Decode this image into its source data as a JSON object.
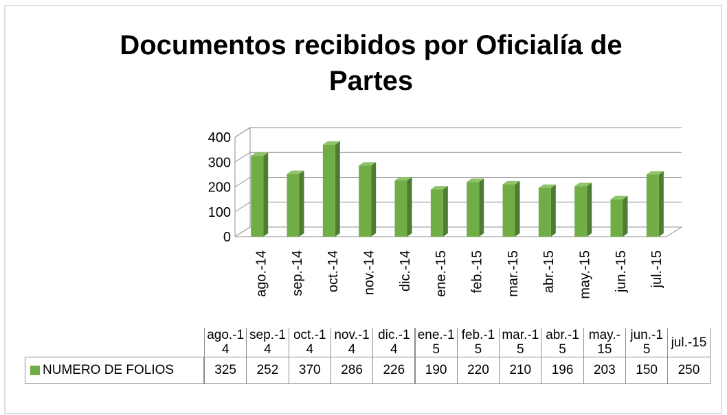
{
  "chart_data": {
    "type": "bar3d",
    "title": "Documentos recibidos por Oficialía de Partes",
    "categories": [
      "ago.-14",
      "sep.-14",
      "oct.-14",
      "nov.-14",
      "dic.-14",
      "ene.-15",
      "feb.-15",
      "mar.-15",
      "abr.-15",
      "may.-15",
      "jun.-15",
      "jul.-15"
    ],
    "series": [
      {
        "name": "NUMERO DE FOLIOS",
        "color": "#70ad47",
        "values": [
          325,
          252,
          370,
          286,
          226,
          190,
          220,
          210,
          196,
          203,
          150,
          250
        ]
      }
    ],
    "ylim": [
      0,
      400
    ],
    "yticks": [
      0,
      100,
      200,
      300,
      400
    ],
    "grid": true,
    "data_table": true
  }
}
